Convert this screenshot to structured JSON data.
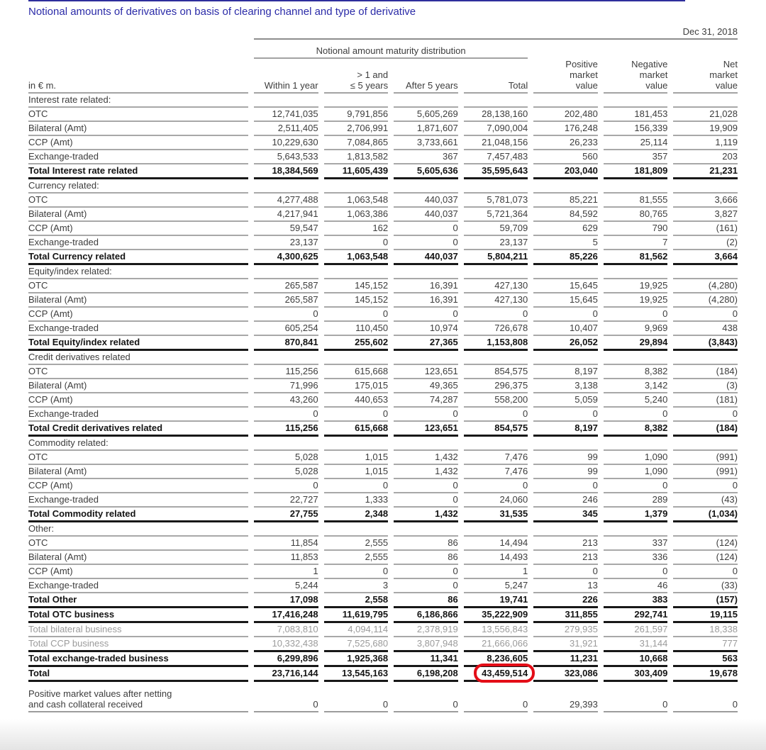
{
  "page": {
    "title": "Notional amounts of derivatives on basis of clearing channel and type of derivative",
    "date_label": "Dec 31, 2018",
    "unit_label": "in € m.",
    "colors": {
      "title_blue": "#2b2ba8",
      "top_rule_blue": "#2e2e9c",
      "highlight_red": "#e30d17"
    }
  },
  "table": {
    "group_header": "Notional amount maturity distribution",
    "columns": [
      [
        "Within 1 year"
      ],
      [
        "> 1 and",
        "≤ 5 years"
      ],
      [
        "After 5 years"
      ],
      [
        "Total"
      ],
      [
        "Positive",
        "market",
        "value"
      ],
      [
        "Negative",
        "market",
        "value"
      ],
      [
        "Net",
        "market",
        "value"
      ]
    ],
    "sections": [
      {
        "header": "Interest rate related:",
        "rows": [
          {
            "label": "OTC",
            "indent": 1,
            "values": [
              "12,741,035",
              "9,791,856",
              "5,605,269",
              "28,138,160",
              "202,480",
              "181,453",
              "21,028"
            ]
          },
          {
            "label": "Bilateral (Amt)",
            "indent": 2,
            "values": [
              "2,511,405",
              "2,706,991",
              "1,871,607",
              "7,090,004",
              "176,248",
              "156,339",
              "19,909"
            ]
          },
          {
            "label": "CCP (Amt)",
            "indent": 2,
            "values": [
              "10,229,630",
              "7,084,865",
              "3,733,661",
              "21,048,156",
              "26,233",
              "25,114",
              "1,119"
            ]
          },
          {
            "label": "Exchange-traded",
            "indent": 1,
            "values": [
              "5,643,533",
              "1,813,582",
              "367",
              "7,457,483",
              "560",
              "357",
              "203"
            ]
          }
        ],
        "total": {
          "label": "Total Interest rate related",
          "values": [
            "18,384,569",
            "11,605,439",
            "5,605,636",
            "35,595,643",
            "203,040",
            "181,809",
            "21,231"
          ]
        }
      },
      {
        "header": "Currency related:",
        "rows": [
          {
            "label": "OTC",
            "indent": 1,
            "values": [
              "4,277,488",
              "1,063,548",
              "440,037",
              "5,781,073",
              "85,221",
              "81,555",
              "3,666"
            ]
          },
          {
            "label": "Bilateral (Amt)",
            "indent": 2,
            "values": [
              "4,217,941",
              "1,063,386",
              "440,037",
              "5,721,364",
              "84,592",
              "80,765",
              "3,827"
            ]
          },
          {
            "label": "CCP (Amt)",
            "indent": 2,
            "values": [
              "59,547",
              "162",
              "0",
              "59,709",
              "629",
              "790",
              "(161)"
            ]
          },
          {
            "label": "Exchange-traded",
            "indent": 1,
            "values": [
              "23,137",
              "0",
              "0",
              "23,137",
              "5",
              "7",
              "(2)"
            ]
          }
        ],
        "total": {
          "label": "Total Currency related",
          "values": [
            "4,300,625",
            "1,063,548",
            "440,037",
            "5,804,211",
            "85,226",
            "81,562",
            "3,664"
          ]
        }
      },
      {
        "header": "Equity/index related:",
        "rows": [
          {
            "label": "OTC",
            "indent": 1,
            "values": [
              "265,587",
              "145,152",
              "16,391",
              "427,130",
              "15,645",
              "19,925",
              "(4,280)"
            ]
          },
          {
            "label": "Bilateral (Amt)",
            "indent": 2,
            "values": [
              "265,587",
              "145,152",
              "16,391",
              "427,130",
              "15,645",
              "19,925",
              "(4,280)"
            ]
          },
          {
            "label": "CCP (Amt)",
            "indent": 2,
            "values": [
              "0",
              "0",
              "0",
              "0",
              "0",
              "0",
              "0"
            ]
          },
          {
            "label": "Exchange-traded",
            "indent": 1,
            "values": [
              "605,254",
              "110,450",
              "10,974",
              "726,678",
              "10,407",
              "9,969",
              "438"
            ]
          }
        ],
        "total": {
          "label": "Total Equity/index related",
          "values": [
            "870,841",
            "255,602",
            "27,365",
            "1,153,808",
            "26,052",
            "29,894",
            "(3,843)"
          ]
        }
      },
      {
        "header": "Credit derivatives related",
        "rows": [
          {
            "label": "OTC",
            "indent": 1,
            "values": [
              "115,256",
              "615,668",
              "123,651",
              "854,575",
              "8,197",
              "8,382",
              "(184)"
            ]
          },
          {
            "label": "Bilateral (Amt)",
            "indent": 2,
            "values": [
              "71,996",
              "175,015",
              "49,365",
              "296,375",
              "3,138",
              "3,142",
              "(3)"
            ]
          },
          {
            "label": "CCP (Amt)",
            "indent": 2,
            "values": [
              "43,260",
              "440,653",
              "74,287",
              "558,200",
              "5,059",
              "5,240",
              "(181)"
            ]
          },
          {
            "label": "Exchange-traded",
            "indent": 1,
            "values": [
              "0",
              "0",
              "0",
              "0",
              "0",
              "0",
              "0"
            ]
          }
        ],
        "total": {
          "label": "Total Credit derivatives related",
          "values": [
            "115,256",
            "615,668",
            "123,651",
            "854,575",
            "8,197",
            "8,382",
            "(184)"
          ]
        }
      },
      {
        "header": "Commodity related:",
        "rows": [
          {
            "label": "OTC",
            "indent": 1,
            "values": [
              "5,028",
              "1,015",
              "1,432",
              "7,476",
              "99",
              "1,090",
              "(991)"
            ]
          },
          {
            "label": "Bilateral (Amt)",
            "indent": 2,
            "values": [
              "5,028",
              "1,015",
              "1,432",
              "7,476",
              "99",
              "1,090",
              "(991)"
            ]
          },
          {
            "label": "CCP (Amt)",
            "indent": 2,
            "values": [
              "0",
              "0",
              "0",
              "0",
              "0",
              "0",
              "0"
            ]
          },
          {
            "label": "Exchange-traded",
            "indent": 1,
            "values": [
              "22,727",
              "1,333",
              "0",
              "24,060",
              "246",
              "289",
              "(43)"
            ]
          }
        ],
        "total": {
          "label": "Total Commodity related",
          "values": [
            "27,755",
            "2,348",
            "1,432",
            "31,535",
            "345",
            "1,379",
            "(1,034)"
          ]
        }
      },
      {
        "header": "Other:",
        "rows": [
          {
            "label": "OTC",
            "indent": 1,
            "values": [
              "11,854",
              "2,555",
              "86",
              "14,494",
              "213",
              "337",
              "(124)"
            ]
          },
          {
            "label": "Bilateral (Amt)",
            "indent": 2,
            "values": [
              "11,853",
              "2,555",
              "86",
              "14,493",
              "213",
              "336",
              "(124)"
            ]
          },
          {
            "label": "CCP (Amt)",
            "indent": 2,
            "values": [
              "1",
              "0",
              "0",
              "1",
              "0",
              "0",
              "0"
            ]
          },
          {
            "label": "Exchange-traded",
            "indent": 1,
            "values": [
              "5,244",
              "3",
              "0",
              "5,247",
              "13",
              "46",
              "(33)"
            ]
          }
        ],
        "total": {
          "label": "Total Other",
          "values": [
            "17,098",
            "2,558",
            "86",
            "19,741",
            "226",
            "383",
            "(157)"
          ]
        }
      }
    ],
    "summary_rows": [
      {
        "label": "Total OTC business",
        "style": "total",
        "values": [
          "17,416,248",
          "11,619,795",
          "6,186,866",
          "35,222,909",
          "311,855",
          "292,741",
          "19,115"
        ]
      },
      {
        "label": "Total bilateral business",
        "style": "muted",
        "values": [
          "7,083,810",
          "4,094,114",
          "2,378,919",
          "13,556,843",
          "279,935",
          "261,597",
          "18,338"
        ]
      },
      {
        "label": "Total CCP business",
        "style": "mutedtotal",
        "values": [
          "10,332,438",
          "7,525,680",
          "3,807,948",
          "21,666,066",
          "31,921",
          "31,144",
          "777"
        ]
      },
      {
        "label": "Total exchange-traded business",
        "style": "total",
        "values": [
          "6,299,896",
          "1,925,368",
          "11,341",
          "8,236,605",
          "11,231",
          "10,668",
          "563"
        ]
      },
      {
        "label": "Total",
        "style": "total",
        "highlight_col": 3,
        "values": [
          "23,716,144",
          "13,545,163",
          "6,198,208",
          "43,459,514",
          "323,086",
          "303,409",
          "19,678"
        ]
      }
    ],
    "footer_row": {
      "label_lines": [
        "Positive market values after netting",
        "and cash collateral received"
      ],
      "values": [
        "0",
        "0",
        "0",
        "0",
        "29,393",
        "0",
        "0"
      ]
    }
  }
}
